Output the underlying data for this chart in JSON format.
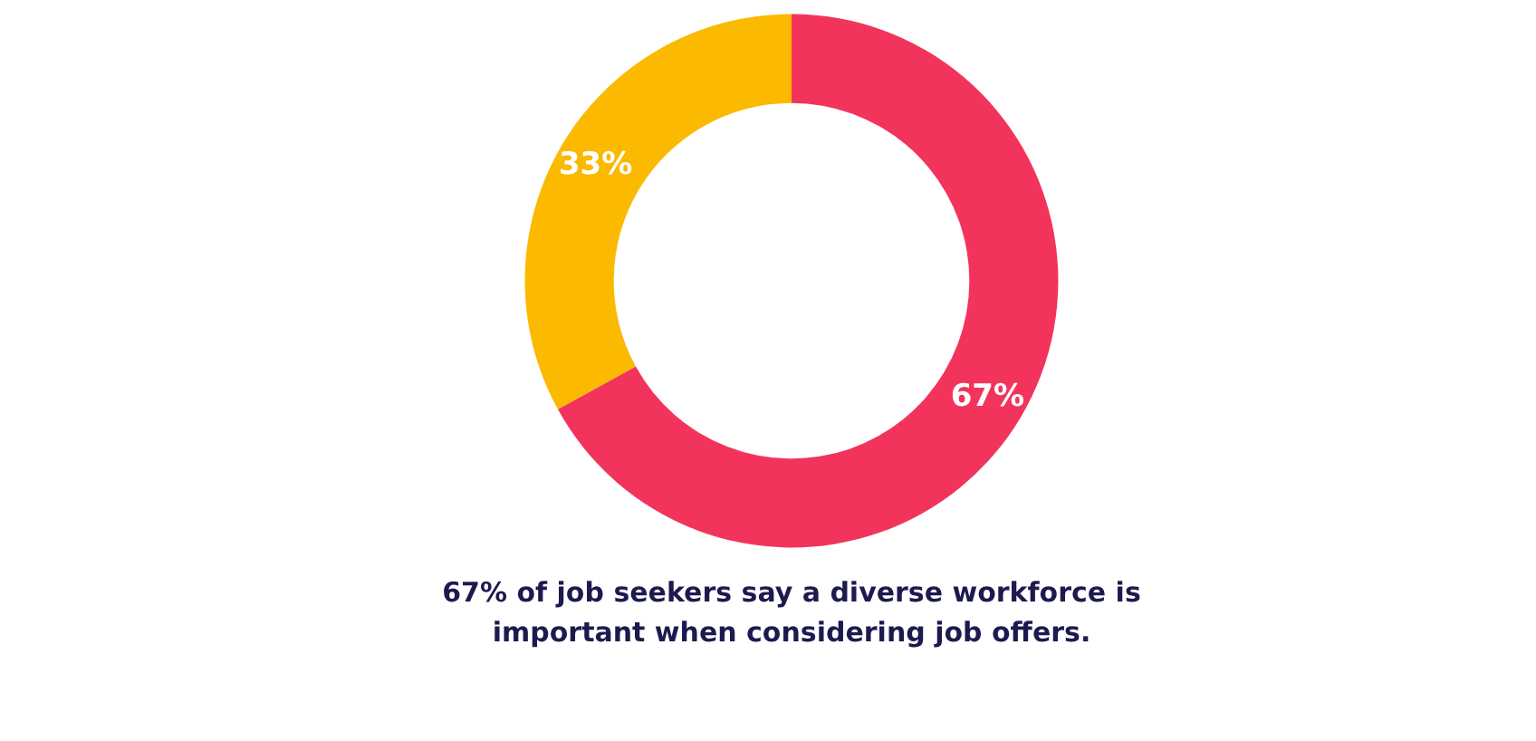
{
  "chart_data": {
    "type": "donut",
    "categories": [
      null,
      null
    ],
    "values": [
      67,
      33
    ],
    "colors": [
      "#f2345c",
      "#fbb900"
    ],
    "value_labels": [
      "67%",
      "33%"
    ],
    "annotations": [
      "67% of job seekers say a diverse workforce is important when considering job offers."
    ]
  }
}
